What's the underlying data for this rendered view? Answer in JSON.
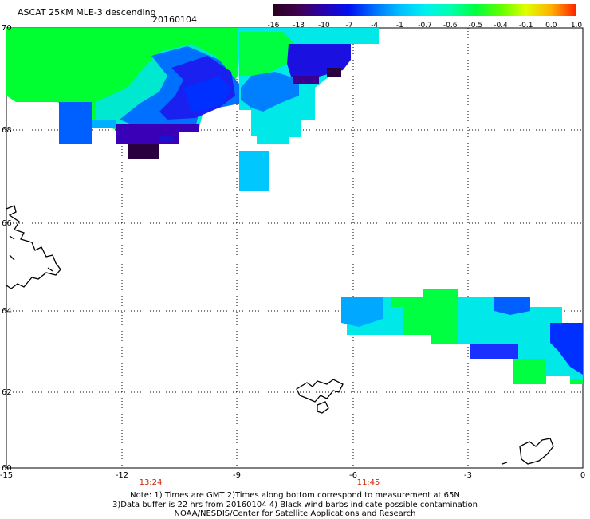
{
  "header": {
    "title": "ASCAT 25KM MLE-3 descending",
    "date": "20160104"
  },
  "colorbar": {
    "labels": [
      "-16",
      "-13",
      "-10",
      "-7",
      "-4",
      "-1",
      "-0.7",
      "-0.6",
      "-0.5",
      "-0.4",
      "-0.1",
      "0.0",
      "1.0"
    ],
    "colors": [
      "#2a0020",
      "#400050",
      "#2a00b0",
      "#0010f0",
      "#0070ff",
      "#00bfff",
      "#00f0f0",
      "#00ffb0",
      "#00ff40",
      "#60ff00",
      "#e0ff00",
      "#ffb000",
      "#ff2000"
    ]
  },
  "axes": {
    "lon_ticks": [
      "-15",
      "-12",
      "-9",
      "-6",
      "-3",
      "0"
    ],
    "lat_ticks": [
      "70",
      "68",
      "66",
      "64",
      "62",
      "60"
    ]
  },
  "times": [
    "13:24",
    "11:45"
  ],
  "footer": {
    "line1": "Note: 1) Times are GMT 2)Times along bottom correspond to measurement at 65N",
    "line2": "3)Data buffer is 22 hrs from 20160104 4) Black wind barbs indicate possible contamination",
    "line3": "NOAA/NESDIS/Center for Satellite Applications and Research"
  }
}
